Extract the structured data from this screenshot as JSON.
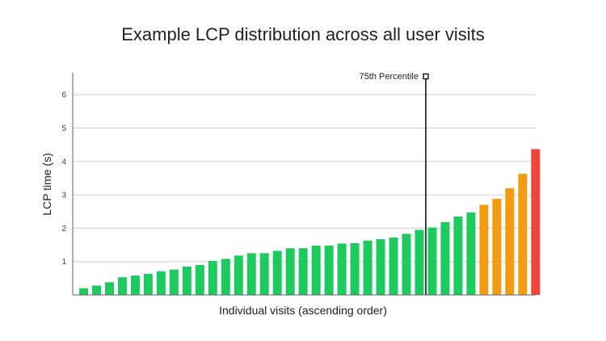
{
  "chart_data": {
    "type": "bar",
    "title": "Example LCP distribution across all user visits",
    "xlabel": "Individual visits (ascending order)",
    "ylabel": "LCP time (s)",
    "ylim": [
      0,
      6.5
    ],
    "yticks": [
      1,
      2,
      3,
      4,
      5,
      6
    ],
    "grid": true,
    "values": [
      0.2,
      0.28,
      0.38,
      0.53,
      0.58,
      0.63,
      0.71,
      0.76,
      0.85,
      0.9,
      1.02,
      1.08,
      1.18,
      1.25,
      1.25,
      1.32,
      1.4,
      1.4,
      1.48,
      1.48,
      1.54,
      1.55,
      1.63,
      1.67,
      1.72,
      1.83,
      1.95,
      2.02,
      2.18,
      2.35,
      2.47,
      2.7,
      2.88,
      3.2,
      3.63,
      4.37
    ],
    "colors": [
      "#1ec95f",
      "#1ec95f",
      "#1ec95f",
      "#1ec95f",
      "#1ec95f",
      "#1ec95f",
      "#1ec95f",
      "#1ec95f",
      "#1ec95f",
      "#1ec95f",
      "#1ec95f",
      "#1ec95f",
      "#1ec95f",
      "#1ec95f",
      "#1ec95f",
      "#1ec95f",
      "#1ec95f",
      "#1ec95f",
      "#1ec95f",
      "#1ec95f",
      "#1ec95f",
      "#1ec95f",
      "#1ec95f",
      "#1ec95f",
      "#1ec95f",
      "#1ec95f",
      "#1ec95f",
      "#1ec95f",
      "#1ec95f",
      "#1ec95f",
      "#1ec95f",
      "#f39c12",
      "#f39c12",
      "#f39c12",
      "#f39c12",
      "#f0453a"
    ],
    "annotation": {
      "label": "75th Percentile",
      "after_index": 26
    }
  },
  "colors": {
    "good": "#1ec95f",
    "needs_improvement": "#f39c12",
    "poor": "#f0453a",
    "grid": "#d0d0d0",
    "axis": "#5f6368",
    "marker": "#111111"
  }
}
